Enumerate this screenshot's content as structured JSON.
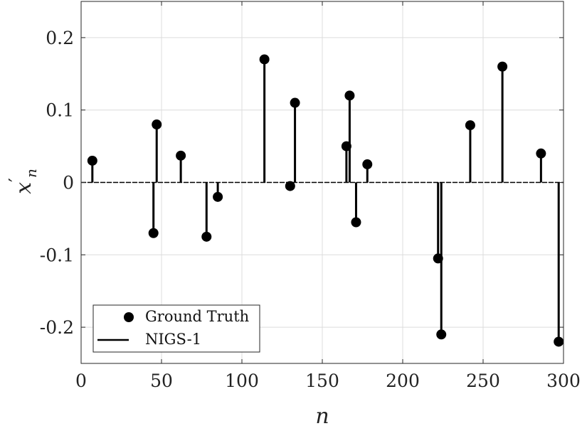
{
  "chart_data": {
    "type": "scatter",
    "title": "",
    "xlabel": "n",
    "ylabel": "x'_n",
    "xlim": [
      0,
      300
    ],
    "ylim": [
      -0.25,
      0.25
    ],
    "xticks": [
      0,
      50,
      100,
      150,
      200,
      250,
      300
    ],
    "yticks": [
      -0.2,
      -0.1,
      0,
      0.1,
      0.2
    ],
    "xtick_labels": [
      "0",
      "50",
      "100",
      "150",
      "200",
      "250",
      "300"
    ],
    "ytick_labels": [
      "-0.2",
      "-0.1",
      "0",
      "0.1",
      "0.2"
    ],
    "grid": true,
    "legend_position": "bottom-left",
    "colors": {
      "marker": "#000000",
      "stem": "#000000",
      "grid": "#dcdcdc",
      "axes": "#262626"
    },
    "series": [
      {
        "name": "Ground Truth",
        "style": "filled-circle markers",
        "x": [
          7,
          45,
          47,
          62,
          78,
          85,
          114,
          130,
          133,
          165,
          167,
          171,
          178,
          222,
          224,
          242,
          262,
          286,
          297
        ],
        "y": [
          0.03,
          -0.07,
          0.08,
          0.037,
          -0.075,
          -0.02,
          0.17,
          -0.005,
          0.11,
          0.05,
          0.12,
          -0.055,
          0.025,
          -0.105,
          -0.21,
          0.079,
          0.16,
          0.04,
          -0.22
        ]
      },
      {
        "name": "NIGS-1",
        "style": "black stems",
        "x": [
          7,
          45,
          47,
          62,
          78,
          85,
          114,
          130,
          133,
          165,
          167,
          171,
          178,
          222,
          224,
          242,
          262,
          286,
          297
        ],
        "y": [
          0.03,
          -0.07,
          0.08,
          0.037,
          -0.075,
          -0.02,
          0.17,
          -0.005,
          0.11,
          0.05,
          0.12,
          -0.055,
          0.025,
          -0.105,
          -0.21,
          0.079,
          0.16,
          0.04,
          -0.22
        ]
      }
    ]
  }
}
